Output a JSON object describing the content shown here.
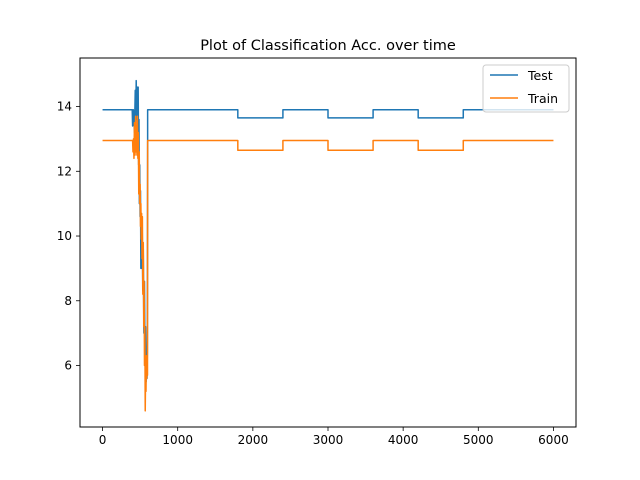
{
  "chart_data": {
    "type": "line",
    "title": "Plot of Classification Acc. over time",
    "xlabel": "",
    "ylabel": "",
    "xlim": [
      -300,
      6300
    ],
    "ylim": [
      4.1,
      15.5
    ],
    "xticks": [
      0,
      1000,
      2000,
      3000,
      4000,
      5000,
      6000
    ],
    "yticks": [
      6,
      8,
      10,
      12,
      14
    ],
    "legend": {
      "position": "top-right"
    },
    "series": [
      {
        "name": "Test",
        "color": "#1f77b4",
        "points": [
          [
            0,
            13.9
          ],
          [
            395,
            13.9
          ],
          [
            400,
            13.4
          ],
          [
            410,
            13.9
          ],
          [
            425,
            13.2
          ],
          [
            435,
            14.5
          ],
          [
            440,
            13.3
          ],
          [
            448,
            14.8
          ],
          [
            455,
            13.6
          ],
          [
            462,
            14.6
          ],
          [
            468,
            12.8
          ],
          [
            474,
            14.6
          ],
          [
            480,
            12.2
          ],
          [
            485,
            13.6
          ],
          [
            490,
            11.0
          ],
          [
            495,
            12.2
          ],
          [
            500,
            10.6
          ],
          [
            505,
            11.4
          ],
          [
            510,
            9.0
          ],
          [
            515,
            10.6
          ],
          [
            520,
            9.0
          ],
          [
            528,
            10.2
          ],
          [
            535,
            8.3
          ],
          [
            542,
            9.6
          ],
          [
            550,
            7.0
          ],
          [
            558,
            8.6
          ],
          [
            565,
            6.0
          ],
          [
            572,
            7.2
          ],
          [
            580,
            5.5
          ],
          [
            586,
            6.2
          ],
          [
            592,
            5.6
          ],
          [
            596,
            6.4
          ],
          [
            600,
            12.9
          ],
          [
            600,
            13.9
          ],
          [
            1800,
            13.9
          ],
          [
            1800,
            13.65
          ],
          [
            2400,
            13.65
          ],
          [
            2400,
            13.9
          ],
          [
            3000,
            13.9
          ],
          [
            3000,
            13.65
          ],
          [
            3600,
            13.65
          ],
          [
            3600,
            13.9
          ],
          [
            4200,
            13.9
          ],
          [
            4200,
            13.65
          ],
          [
            4800,
            13.65
          ],
          [
            4800,
            13.9
          ],
          [
            6000,
            13.9
          ]
        ]
      },
      {
        "name": "Train",
        "color": "#ff7f0e",
        "points": [
          [
            0,
            12.95
          ],
          [
            400,
            12.95
          ],
          [
            405,
            12.6
          ],
          [
            412,
            13.0
          ],
          [
            418,
            12.4
          ],
          [
            425,
            13.5
          ],
          [
            432,
            12.5
          ],
          [
            440,
            13.7
          ],
          [
            446,
            12.6
          ],
          [
            452,
            13.4
          ],
          [
            458,
            12.5
          ],
          [
            464,
            13.7
          ],
          [
            470,
            12.4
          ],
          [
            476,
            13.2
          ],
          [
            482,
            11.3
          ],
          [
            488,
            12.6
          ],
          [
            494,
            11.0
          ],
          [
            500,
            11.6
          ],
          [
            505,
            10.3
          ],
          [
            510,
            11.0
          ],
          [
            515,
            9.9
          ],
          [
            520,
            10.7
          ],
          [
            525,
            9.3
          ],
          [
            530,
            10.6
          ],
          [
            536,
            8.2
          ],
          [
            542,
            9.8
          ],
          [
            548,
            7.2
          ],
          [
            553,
            8.6
          ],
          [
            558,
            6.0
          ],
          [
            563,
            7.2
          ],
          [
            568,
            4.6
          ],
          [
            573,
            5.8
          ],
          [
            578,
            5.2
          ],
          [
            583,
            6.3
          ],
          [
            588,
            5.6
          ],
          [
            593,
            6.1
          ],
          [
            598,
            5.7
          ],
          [
            600,
            12.95
          ],
          [
            1800,
            12.95
          ],
          [
            1800,
            12.65
          ],
          [
            2400,
            12.65
          ],
          [
            2400,
            12.95
          ],
          [
            3000,
            12.95
          ],
          [
            3000,
            12.65
          ],
          [
            3600,
            12.65
          ],
          [
            3600,
            12.95
          ],
          [
            4200,
            12.95
          ],
          [
            4200,
            12.65
          ],
          [
            4800,
            12.65
          ],
          [
            4800,
            12.95
          ],
          [
            6000,
            12.95
          ]
        ]
      }
    ]
  }
}
